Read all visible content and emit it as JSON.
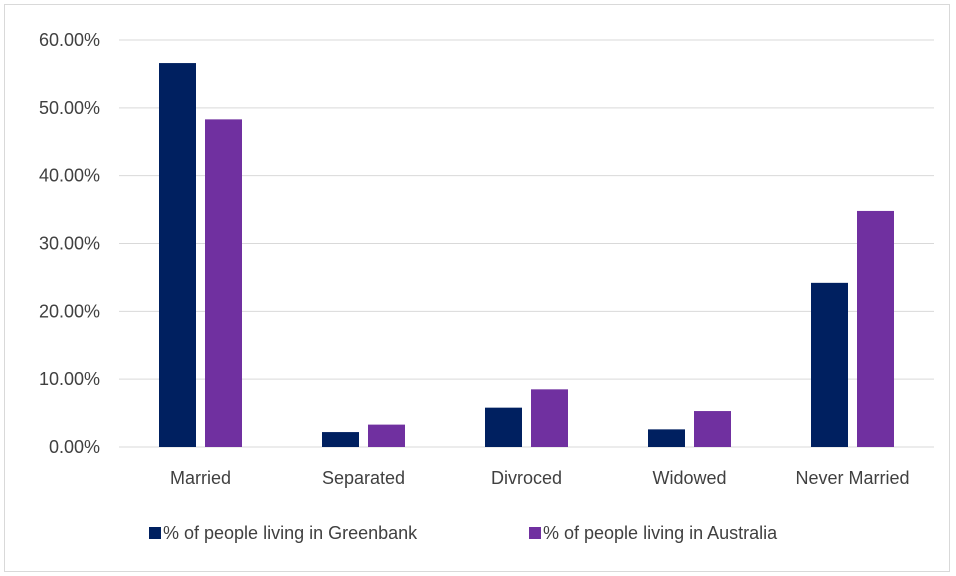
{
  "chart_data": {
    "type": "bar",
    "title": "",
    "xlabel": "",
    "ylabel": "",
    "categories": [
      "Married",
      "Separated",
      "Divroced",
      "Widowed",
      "Never Married"
    ],
    "series": [
      {
        "name": "% of people living in Greenbank",
        "color": "#002060",
        "values": [
          56.6,
          2.2,
          5.8,
          2.6,
          24.2
        ]
      },
      {
        "name": "% of people living in Australia",
        "color": "#7030A0",
        "values": [
          48.3,
          3.3,
          8.5,
          5.3,
          34.8
        ]
      }
    ],
    "ylim": [
      0,
      60
    ],
    "yticks": [
      0,
      10,
      20,
      30,
      40,
      50,
      60
    ],
    "ytick_labels": [
      "0.00%",
      "10.00%",
      "20.00%",
      "30.00%",
      "40.00%",
      "50.00%",
      "60.00%"
    ],
    "grid": true,
    "legend_position": "bottom"
  }
}
